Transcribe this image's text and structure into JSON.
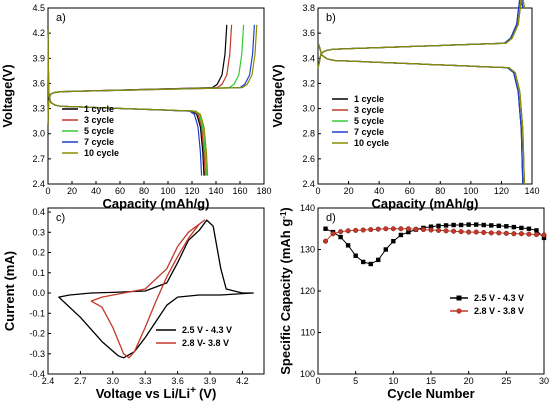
{
  "chart_data": [
    {
      "panel": "a)",
      "type": "line",
      "xlabel": "Capacity (mAh/g)",
      "ylabel": "Voltage(V)",
      "xlim": [
        0,
        180
      ],
      "ylim": [
        2.4,
        4.5
      ],
      "x_ticks": [
        "0",
        "20",
        "40",
        "60",
        "80",
        "100",
        "120",
        "140",
        "160",
        "180"
      ],
      "y_ticks": [
        "2.4",
        "2.7",
        "3.0",
        "3.3",
        "3.6",
        "3.9",
        "4.2",
        "4.5"
      ],
      "legend_position": "left",
      "series": [
        {
          "name": "1 cycle",
          "color": "#000000",
          "charge_end": 149,
          "discharge_end": 130
        },
        {
          "name": "3 cycle",
          "color": "#c0392b",
          "charge_end": 153,
          "discharge_end": 131
        },
        {
          "name": "5 cycle",
          "color": "#33cc33",
          "charge_end": 163,
          "discharge_end": 132
        },
        {
          "name": "7 cycle",
          "color": "#1f3fd1",
          "charge_end": 172,
          "discharge_end": 128
        },
        {
          "name": "10 cycle",
          "color": "#8c8c00",
          "charge_end": 174,
          "discharge_end": 133
        }
      ]
    },
    {
      "panel": "b)",
      "type": "line",
      "xlabel": "Capacity (mAh/g)",
      "ylabel": "Voltage(V)",
      "xlim": [
        0,
        140
      ],
      "ylim": [
        2.4,
        3.8
      ],
      "x_ticks": [
        "0",
        "20",
        "40",
        "60",
        "80",
        "100",
        "120",
        "140"
      ],
      "y_ticks": [
        "2.4",
        "2.6",
        "2.8",
        "3.0",
        "3.2",
        "3.4",
        "3.6",
        "3.8"
      ],
      "legend_position": "center-left",
      "series": [
        {
          "name": "1 cycle",
          "color": "#000000",
          "charge_end": 134,
          "discharge_end": 134
        },
        {
          "name": "3 cycle",
          "color": "#c0392b",
          "charge_end": 135,
          "discharge_end": 135
        },
        {
          "name": "5 cycle",
          "color": "#33cc33",
          "charge_end": 135,
          "discharge_end": 135
        },
        {
          "name": "7 cycle",
          "color": "#1f3fd1",
          "charge_end": 134,
          "discharge_end": 134
        },
        {
          "name": "10 cycle",
          "color": "#8c8c00",
          "charge_end": 135,
          "discharge_end": 135
        }
      ]
    },
    {
      "panel": "c)",
      "type": "line",
      "xlabel": "Voltage vs Li/Li",
      "xlabel_sup": "+",
      "xlabel_unit": "(V)",
      "ylabel": "Current (mA)",
      "xlim": [
        2.4,
        4.4
      ],
      "ylim": [
        -0.4,
        0.42
      ],
      "x_ticks": [
        "2.4",
        "2.7",
        "3.0",
        "3.3",
        "3.6",
        "3.9",
        "4.2"
      ],
      "y_ticks": [
        "-0.4",
        "-0.3",
        "-0.2",
        "-0.1",
        "0.0",
        "0.1",
        "0.2",
        "0.3",
        "0.4"
      ],
      "legend_position": "bottom-right",
      "series": [
        {
          "name": "2.5 V - 4.3 V",
          "color": "#000000",
          "points": [
            [
              2.5,
              -0.02
            ],
            [
              2.6,
              -0.01
            ],
            [
              2.8,
              0.0
            ],
            [
              3.0,
              0.003
            ],
            [
              3.3,
              0.01
            ],
            [
              3.5,
              0.05
            ],
            [
              3.6,
              0.15
            ],
            [
              3.7,
              0.26
            ],
            [
              3.8,
              0.31
            ],
            [
              3.87,
              0.36
            ],
            [
              3.93,
              0.33
            ],
            [
              4.0,
              0.12
            ],
            [
              4.05,
              0.02
            ],
            [
              4.2,
              0.0
            ],
            [
              4.3,
              0.0
            ],
            [
              4.2,
              -0.003
            ],
            [
              4.0,
              -0.01
            ],
            [
              3.8,
              -0.01
            ],
            [
              3.6,
              -0.02
            ],
            [
              3.5,
              -0.06
            ],
            [
              3.4,
              -0.14
            ],
            [
              3.3,
              -0.22
            ],
            [
              3.2,
              -0.29
            ],
            [
              3.1,
              -0.32
            ],
            [
              3.05,
              -0.31
            ],
            [
              2.9,
              -0.24
            ],
            [
              2.7,
              -0.12
            ],
            [
              2.5,
              -0.02
            ]
          ]
        },
        {
          "name": "2.8 V- 3.8 V",
          "color": "#c0392b",
          "points": [
            [
              2.8,
              -0.04
            ],
            [
              2.9,
              -0.02
            ],
            [
              3.1,
              0.0
            ],
            [
              3.3,
              0.02
            ],
            [
              3.5,
              0.12
            ],
            [
              3.6,
              0.23
            ],
            [
              3.7,
              0.3
            ],
            [
              3.8,
              0.34
            ],
            [
              3.85,
              0.36
            ],
            [
              3.8,
              0.34
            ],
            [
              3.7,
              0.27
            ],
            [
              3.6,
              0.18
            ],
            [
              3.5,
              0.08
            ],
            [
              3.4,
              -0.04
            ],
            [
              3.3,
              -0.17
            ],
            [
              3.2,
              -0.29
            ],
            [
              3.15,
              -0.32
            ],
            [
              3.1,
              -0.3
            ],
            [
              3.0,
              -0.17
            ],
            [
              2.9,
              -0.07
            ],
            [
              2.8,
              -0.04
            ]
          ]
        }
      ]
    },
    {
      "panel": "d)",
      "type": "line",
      "xlabel": "Cycle Number",
      "ylabel": "Specific Capacity (mAh g",
      "ylabel_sup": "-1",
      "ylabel_close": ")",
      "xlim": [
        0,
        30
      ],
      "ylim": [
        100,
        140
      ],
      "x_ticks": [
        "0",
        "5",
        "10",
        "15",
        "20",
        "25",
        "30"
      ],
      "y_ticks": [
        "100",
        "110",
        "120",
        "130",
        "140"
      ],
      "legend_position": "center-right",
      "series": [
        {
          "name": "2.5 V - 4.3 V",
          "color": "#000000",
          "marker": "square",
          "points": [
            [
              1,
              135
            ],
            [
              2,
              134.2
            ],
            [
              3,
              133
            ],
            [
              4,
              131
            ],
            [
              5,
              128.5
            ],
            [
              6,
              127
            ],
            [
              7,
              126.5
            ],
            [
              8,
              127.5
            ],
            [
              9,
              130
            ],
            [
              10,
              132
            ],
            [
              11,
              133.5
            ],
            [
              12,
              134.2
            ],
            [
              13,
              134.8
            ],
            [
              14,
              135.2
            ],
            [
              15,
              135.5
            ],
            [
              16,
              135.7
            ],
            [
              17,
              135.8
            ],
            [
              18,
              135.9
            ],
            [
              19,
              135.9
            ],
            [
              20,
              136
            ],
            [
              21,
              136
            ],
            [
              22,
              135.9
            ],
            [
              23,
              135.8
            ],
            [
              24,
              135.7
            ],
            [
              25,
              135.6
            ],
            [
              26,
              135.4
            ],
            [
              27,
              135.2
            ],
            [
              28,
              135
            ],
            [
              29,
              134.6
            ],
            [
              30,
              132.8
            ]
          ]
        },
        {
          "name": "2.8 V - 3.8 V",
          "color": "#c0392b",
          "marker": "circle",
          "points": [
            [
              1,
              132
            ],
            [
              2,
              133.8
            ],
            [
              3,
              134.3
            ],
            [
              4,
              134.5
            ],
            [
              5,
              134.6
            ],
            [
              6,
              134.7
            ],
            [
              7,
              134.8
            ],
            [
              8,
              134.9
            ],
            [
              9,
              135
            ],
            [
              10,
              135
            ],
            [
              11,
              135
            ],
            [
              12,
              135
            ],
            [
              13,
              134.9
            ],
            [
              14,
              134.8
            ],
            [
              15,
              134.7
            ],
            [
              16,
              134.6
            ],
            [
              17,
              134.5
            ],
            [
              18,
              134.4
            ],
            [
              19,
              134.3
            ],
            [
              20,
              134.2
            ],
            [
              21,
              134.2
            ],
            [
              22,
              134.1
            ],
            [
              23,
              134
            ],
            [
              24,
              134
            ],
            [
              25,
              133.9
            ],
            [
              26,
              133.8
            ],
            [
              27,
              133.8
            ],
            [
              28,
              133.7
            ],
            [
              29,
              133.6
            ],
            [
              30,
              133.5
            ]
          ]
        }
      ]
    }
  ]
}
